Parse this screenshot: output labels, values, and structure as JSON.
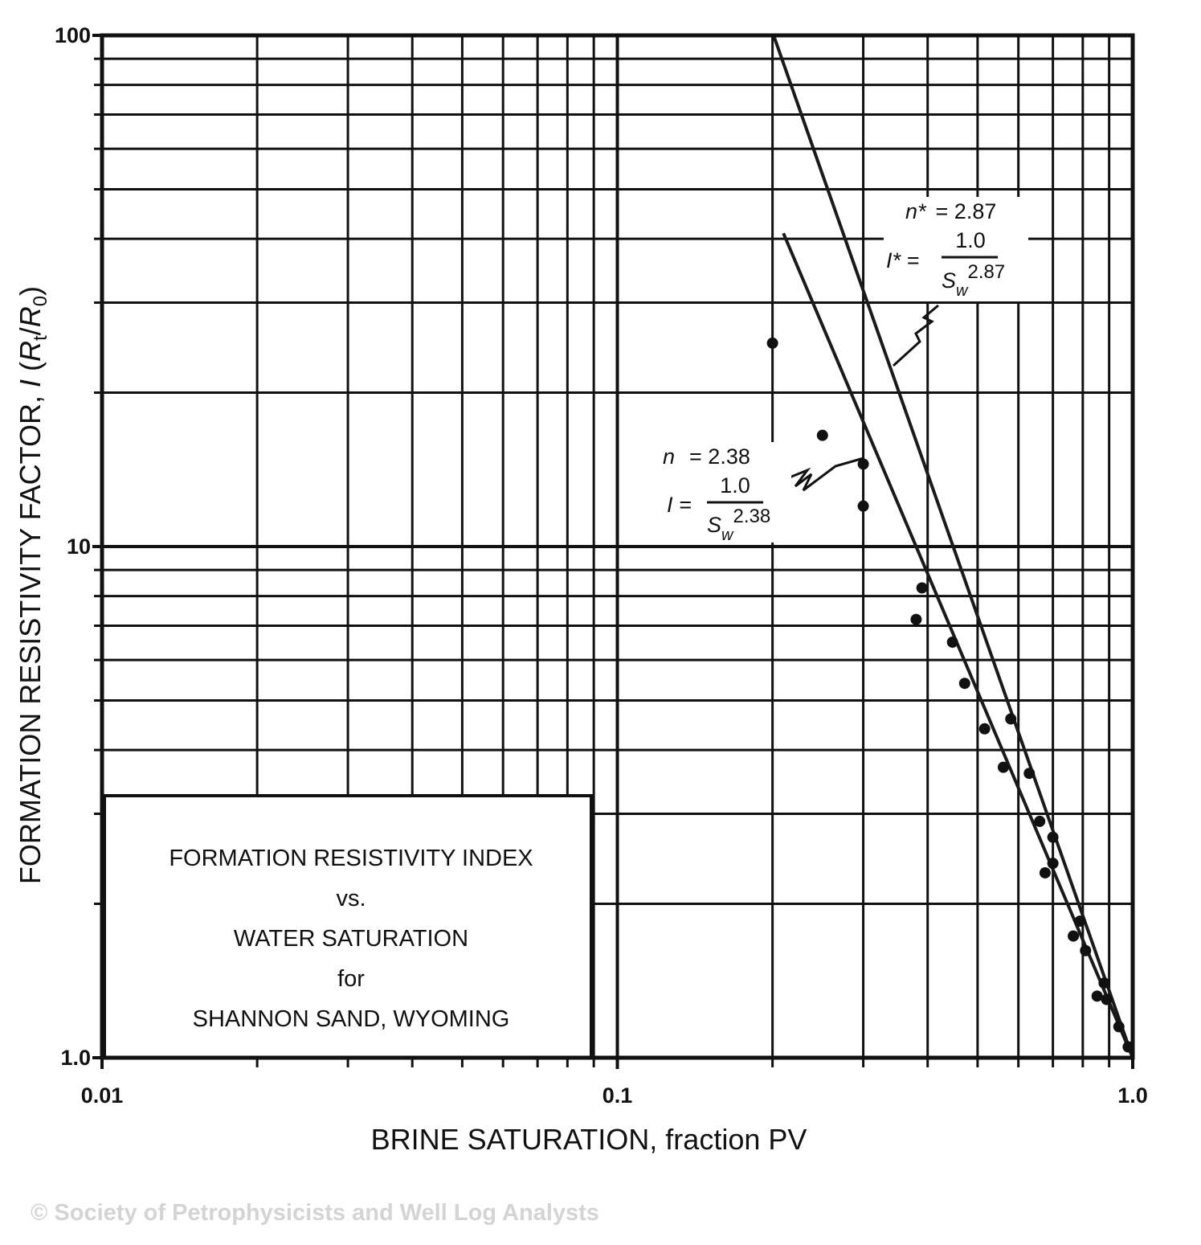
{
  "chart_data": {
    "type": "scatter",
    "xlabel": "BRINE SATURATION, fraction PV",
    "ylabel": {
      "prefix": "FORMATION RESISTIVITY FACTOR, ",
      "symbol": "I",
      "open": " (",
      "r1": "R",
      "s1": "t",
      "slash": "/",
      "r2": "R",
      "s2": "0",
      "close": ")"
    },
    "box_text": [
      "FORMATION RESISTIVITY INDEX",
      "vs.",
      "WATER SATURATION",
      "for",
      "SHANNON SAND, WYOMING"
    ],
    "log_x": true,
    "log_y": true,
    "grid": true,
    "xlim": [
      0.01,
      1
    ],
    "ylim": [
      1,
      100
    ],
    "xticks": [
      0.01,
      0.1,
      {
        "value": 1,
        "label": "1.0"
      }
    ],
    "yticks": [
      {
        "value": 1,
        "label": "1.0"
      },
      10,
      100
    ],
    "minor_xticks": [
      0.02,
      0.03,
      0.04,
      0.05,
      0.06,
      0.07,
      0.08,
      0.09,
      0.2,
      0.3,
      0.4,
      0.5,
      0.6,
      0.7,
      0.8,
      0.9
    ],
    "minor_yticks": [
      2,
      3,
      4,
      5,
      6,
      7,
      8,
      9,
      20,
      30,
      40,
      50,
      60,
      70,
      80,
      90
    ],
    "series": [
      {
        "color": "#111111",
        "x": [
          0.2,
          0.25,
          0.3,
          0.3,
          0.38,
          0.39,
          0.447,
          0.472,
          0.516,
          0.561,
          0.58,
          0.63,
          0.66,
          0.676,
          0.7,
          0.7,
          0.767,
          0.79,
          0.81,
          0.853,
          0.88,
          0.89,
          0.94,
          0.98
        ],
        "values": [
          25,
          16.5,
          12,
          14.5,
          7.2,
          8.3,
          6.5,
          5.4,
          4.4,
          3.7,
          4.6,
          3.6,
          2.9,
          2.3,
          2.4,
          2.7,
          1.73,
          1.85,
          1.62,
          1.32,
          1.4,
          1.3,
          1.15,
          1.05
        ]
      }
    ],
    "lines": [
      {
        "color": "#1a1a1a",
        "x": [
          0.201,
          1
        ],
        "values": [
          100,
          1
        ]
      },
      {
        "color": "#1a1a1a",
        "x": [
          0.21,
          1
        ],
        "values": [
          41,
          1
        ]
      }
    ],
    "annotations": [
      {
        "n_label": "n*",
        "n_value": "= 2.87",
        "i_label": "I* =",
        "numerator": "1.0",
        "base": "S",
        "subscript": "w",
        "exponent": "2.87"
      },
      {
        "n_label": "n",
        "n_value": "= 2.38",
        "i_label": "I =",
        "numerator": "1.0",
        "base": "S",
        "subscript": "w",
        "exponent": "2.38"
      }
    ]
  },
  "footer": "© Society of Petrophysicists and Well Log Analysts"
}
